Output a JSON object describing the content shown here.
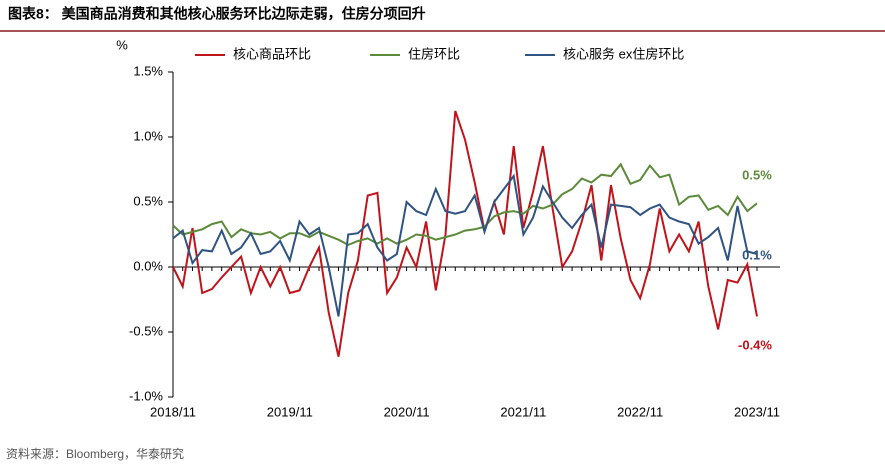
{
  "chart_data": {
    "type": "line",
    "title": "图表8： 美国商品消费和其他核心服务环比边际走弱，住房分项回升",
    "y_label": "%",
    "source": "资料来源：Bloomberg，华泰研究",
    "categories": [
      "2018/11",
      null,
      null,
      null,
      null,
      null,
      null,
      null,
      null,
      null,
      null,
      null,
      "2019/11",
      null,
      null,
      null,
      null,
      null,
      null,
      null,
      null,
      null,
      null,
      null,
      "2020/11",
      null,
      null,
      null,
      null,
      null,
      null,
      null,
      null,
      null,
      null,
      null,
      "2021/11",
      null,
      null,
      null,
      null,
      null,
      null,
      null,
      null,
      null,
      null,
      null,
      "2022/11",
      null,
      null,
      null,
      null,
      null,
      null,
      null,
      null,
      null,
      null,
      null,
      "2023/11"
    ],
    "ylim": [
      -1.0,
      1.5
    ],
    "yticks": [
      {
        "value": -1.0,
        "label": "-1.0%"
      },
      {
        "value": -0.5,
        "label": "-0.5%"
      },
      {
        "value": 0,
        "label": "0.0%"
      },
      {
        "value": 0.5,
        "label": "0.5%"
      },
      {
        "value": 1.0,
        "label": "1.0%"
      },
      {
        "value": 1.5,
        "label": "1.5%"
      }
    ],
    "legend": "top",
    "series": [
      {
        "name": "核心商品环比",
        "color": "#c0141c",
        "values": [
          0.0,
          -0.15,
          0.3,
          -0.2,
          -0.17,
          -0.08,
          0.0,
          0.08,
          -0.2,
          0.0,
          -0.15,
          0.0,
          -0.2,
          -0.18,
          0.0,
          0.15,
          -0.35,
          -0.69,
          -0.2,
          0.05,
          0.55,
          0.57,
          -0.2,
          -0.08,
          0.15,
          0.0,
          0.35,
          -0.18,
          0.25,
          1.2,
          0.98,
          0.65,
          0.28,
          0.5,
          0.25,
          0.93,
          0.3,
          0.58,
          0.93,
          0.45,
          0.0,
          0.12,
          0.35,
          0.63,
          0.05,
          0.63,
          0.22,
          -0.1,
          -0.24,
          0.02,
          0.45,
          0.12,
          0.25,
          0.12,
          0.35,
          -0.15,
          -0.48,
          -0.1,
          -0.12,
          0.02,
          -0.38
        ]
      },
      {
        "name": "住房环比",
        "color": "#5b8a3a",
        "values": [
          0.32,
          0.25,
          0.27,
          0.29,
          0.33,
          0.35,
          0.23,
          0.29,
          0.26,
          0.25,
          0.27,
          0.22,
          0.26,
          0.26,
          0.23,
          0.27,
          0.24,
          0.21,
          0.17,
          0.2,
          0.22,
          0.18,
          0.22,
          0.18,
          0.21,
          0.25,
          0.24,
          0.21,
          0.23,
          0.25,
          0.28,
          0.29,
          0.31,
          0.39,
          0.42,
          0.43,
          0.41,
          0.47,
          0.45,
          0.48,
          0.56,
          0.6,
          0.68,
          0.65,
          0.71,
          0.7,
          0.79,
          0.64,
          0.67,
          0.78,
          0.69,
          0.71,
          0.48,
          0.54,
          0.55,
          0.44,
          0.47,
          0.4,
          0.54,
          0.43,
          0.49
        ]
      },
      {
        "name": "核心服务 ex住房环比",
        "color": "#2f5382",
        "values": [
          0.22,
          0.28,
          0.03,
          0.13,
          0.12,
          0.28,
          0.1,
          0.15,
          0.26,
          0.1,
          0.12,
          0.2,
          0.05,
          0.35,
          0.25,
          0.3,
          0.0,
          -0.38,
          0.25,
          0.26,
          0.33,
          0.15,
          0.05,
          0.1,
          0.5,
          0.43,
          0.4,
          0.6,
          0.43,
          0.41,
          0.43,
          0.55,
          0.27,
          0.5,
          0.6,
          0.7,
          0.25,
          0.38,
          0.62,
          0.5,
          0.38,
          0.3,
          0.4,
          0.48,
          0.15,
          0.48,
          0.47,
          0.46,
          0.4,
          0.45,
          0.48,
          0.38,
          0.35,
          0.33,
          0.18,
          0.23,
          0.3,
          0.05,
          0.47,
          0.12,
          0.1
        ]
      }
    ],
    "annotations": [
      {
        "text": "0.5%",
        "color": "#5b8a3a"
      },
      {
        "text": "0.1%",
        "color": "#2f5382"
      },
      {
        "text": "-0.4%",
        "color": "#c0141c"
      }
    ]
  }
}
